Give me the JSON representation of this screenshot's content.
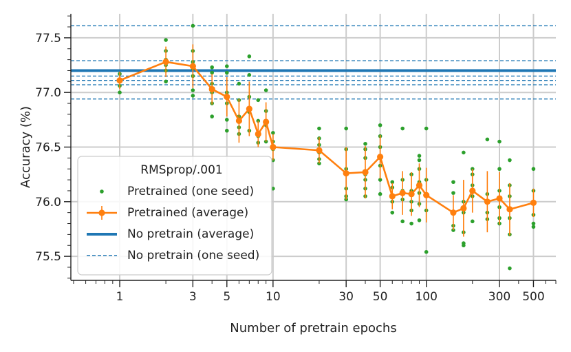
{
  "chart_data": {
    "type": "line",
    "title": "",
    "xlabel": "Number of pretrain epochs",
    "ylabel": "Accuracy (%)",
    "xscale": "log",
    "xlim": [
      0.48,
      700
    ],
    "ylim": [
      75.28,
      77.72
    ],
    "xticks": [
      1,
      3,
      5,
      10,
      30,
      50,
      100,
      300,
      500
    ],
    "yticks": [
      75.5,
      76.0,
      76.5,
      77.0,
      77.5
    ],
    "grid": true,
    "legend": {
      "title": "RMSprop/.001",
      "placement": "lower-left",
      "entries": [
        "Pretrained (one seed)",
        "Pretrained (average)",
        "No pretrain (average)",
        "No pretrain (one seed)"
      ]
    },
    "colors": {
      "seed_points": "#2ca02c",
      "average_line": "#ff7f0e",
      "baseline": "#1f77b4"
    },
    "series": [
      {
        "name": "Pretrained (average)",
        "x": [
          1,
          2,
          3,
          4,
          5,
          6,
          7,
          8,
          9,
          10,
          20,
          30,
          40,
          50,
          60,
          70,
          80,
          90,
          100,
          150,
          175,
          200,
          250,
          300,
          350,
          500
        ],
        "y": [
          77.11,
          77.28,
          77.24,
          77.03,
          76.96,
          76.74,
          76.85,
          76.62,
          76.73,
          76.5,
          76.47,
          76.26,
          76.27,
          76.41,
          76.05,
          76.08,
          76.07,
          76.15,
          76.06,
          75.9,
          75.94,
          76.1,
          76.0,
          76.03,
          75.93,
          75.99
        ],
        "yerr": [
          0.08,
          0.14,
          0.2,
          0.14,
          0.18,
          0.2,
          0.25,
          0.12,
          0.18,
          0.12,
          0.12,
          0.24,
          0.24,
          0.2,
          0.12,
          0.2,
          0.2,
          0.2,
          0.25,
          0.16,
          0.26,
          0.2,
          0.28,
          0.24,
          0.24,
          0.13
        ]
      },
      {
        "name": "Pretrained (one seed)",
        "points": [
          [
            1,
            77.17
          ],
          [
            1,
            77.12
          ],
          [
            1,
            77.06
          ],
          [
            1,
            77.0
          ],
          [
            2,
            77.48
          ],
          [
            2,
            77.38
          ],
          [
            2,
            77.3
          ],
          [
            2,
            77.25
          ],
          [
            2,
            77.2
          ],
          [
            2,
            77.1
          ],
          [
            3,
            77.61
          ],
          [
            3,
            77.38
          ],
          [
            3,
            77.28
          ],
          [
            3,
            77.22
          ],
          [
            3,
            77.15
          ],
          [
            3,
            77.02
          ],
          [
            3,
            76.97
          ],
          [
            4,
            77.23
          ],
          [
            4,
            77.18
          ],
          [
            4,
            77.08
          ],
          [
            4,
            77.0
          ],
          [
            4,
            76.9
          ],
          [
            4,
            76.78
          ],
          [
            5,
            77.24
          ],
          [
            5,
            77.18
          ],
          [
            5,
            77.0
          ],
          [
            5,
            76.9
          ],
          [
            5,
            76.75
          ],
          [
            5,
            76.65
          ],
          [
            6,
            77.08
          ],
          [
            6,
            76.93
          ],
          [
            6,
            76.78
          ],
          [
            6,
            76.68
          ],
          [
            6,
            76.62
          ],
          [
            7,
            77.33
          ],
          [
            7,
            77.16
          ],
          [
            7,
            76.96
          ],
          [
            7,
            76.82
          ],
          [
            7,
            76.65
          ],
          [
            8,
            76.93
          ],
          [
            8,
            76.74
          ],
          [
            8,
            76.6
          ],
          [
            8,
            76.54
          ],
          [
            9,
            77.02
          ],
          [
            9,
            76.83
          ],
          [
            9,
            76.7
          ],
          [
            9,
            76.55
          ],
          [
            10,
            76.63
          ],
          [
            10,
            76.55
          ],
          [
            10,
            76.48
          ],
          [
            10,
            76.38
          ],
          [
            10,
            76.12
          ],
          [
            20,
            76.67
          ],
          [
            20,
            76.58
          ],
          [
            20,
            76.52
          ],
          [
            20,
            76.45
          ],
          [
            20,
            76.39
          ],
          [
            20,
            76.35
          ],
          [
            30,
            76.67
          ],
          [
            30,
            76.48
          ],
          [
            30,
            76.3
          ],
          [
            30,
            76.12
          ],
          [
            30,
            76.05
          ],
          [
            30,
            76.02
          ],
          [
            40,
            76.53
          ],
          [
            40,
            76.48
          ],
          [
            40,
            76.4
          ],
          [
            40,
            76.25
          ],
          [
            40,
            76.2
          ],
          [
            40,
            76.12
          ],
          [
            40,
            76.05
          ],
          [
            50,
            76.7
          ],
          [
            50,
            76.6
          ],
          [
            50,
            76.5
          ],
          [
            50,
            76.42
          ],
          [
            50,
            76.33
          ],
          [
            50,
            76.2
          ],
          [
            50,
            76.07
          ],
          [
            60,
            76.18
          ],
          [
            60,
            76.13
          ],
          [
            60,
            76.06
          ],
          [
            60,
            76.0
          ],
          [
            60,
            75.9
          ],
          [
            70,
            76.67
          ],
          [
            70,
            76.2
          ],
          [
            70,
            76.1
          ],
          [
            70,
            76.02
          ],
          [
            70,
            75.82
          ],
          [
            80,
            76.25
          ],
          [
            80,
            76.1
          ],
          [
            80,
            76.0
          ],
          [
            80,
            75.92
          ],
          [
            80,
            75.8
          ],
          [
            90,
            76.42
          ],
          [
            90,
            76.38
          ],
          [
            90,
            76.3
          ],
          [
            90,
            76.18
          ],
          [
            90,
            76.08
          ],
          [
            90,
            75.98
          ],
          [
            90,
            75.83
          ],
          [
            100,
            76.67
          ],
          [
            100,
            76.2
          ],
          [
            100,
            76.05
          ],
          [
            100,
            75.92
          ],
          [
            100,
            75.54
          ],
          [
            150,
            76.18
          ],
          [
            150,
            76.08
          ],
          [
            150,
            75.9
          ],
          [
            150,
            75.78
          ],
          [
            150,
            75.74
          ],
          [
            175,
            76.45
          ],
          [
            175,
            76.0
          ],
          [
            175,
            75.9
          ],
          [
            175,
            75.72
          ],
          [
            175,
            75.62
          ],
          [
            175,
            75.6
          ],
          [
            200,
            76.3
          ],
          [
            200,
            76.25
          ],
          [
            200,
            76.15
          ],
          [
            200,
            76.05
          ],
          [
            200,
            75.82
          ],
          [
            250,
            76.57
          ],
          [
            250,
            76.07
          ],
          [
            250,
            76.0
          ],
          [
            250,
            75.9
          ],
          [
            250,
            75.84
          ],
          [
            300,
            76.55
          ],
          [
            300,
            76.3
          ],
          [
            300,
            76.1
          ],
          [
            300,
            75.95
          ],
          [
            300,
            75.85
          ],
          [
            300,
            75.8
          ],
          [
            350,
            76.38
          ],
          [
            350,
            76.15
          ],
          [
            350,
            76.05
          ],
          [
            350,
            75.85
          ],
          [
            350,
            75.7
          ],
          [
            350,
            75.39
          ],
          [
            500,
            76.3
          ],
          [
            500,
            76.1
          ],
          [
            500,
            76.0
          ],
          [
            500,
            75.88
          ],
          [
            500,
            75.8
          ],
          [
            500,
            75.77
          ]
        ]
      },
      {
        "name": "No pretrain (average)",
        "y": 77.2
      },
      {
        "name": "No pretrain (one seed)",
        "values": [
          77.61,
          77.29,
          77.15,
          77.11,
          77.07,
          76.94
        ]
      }
    ]
  }
}
